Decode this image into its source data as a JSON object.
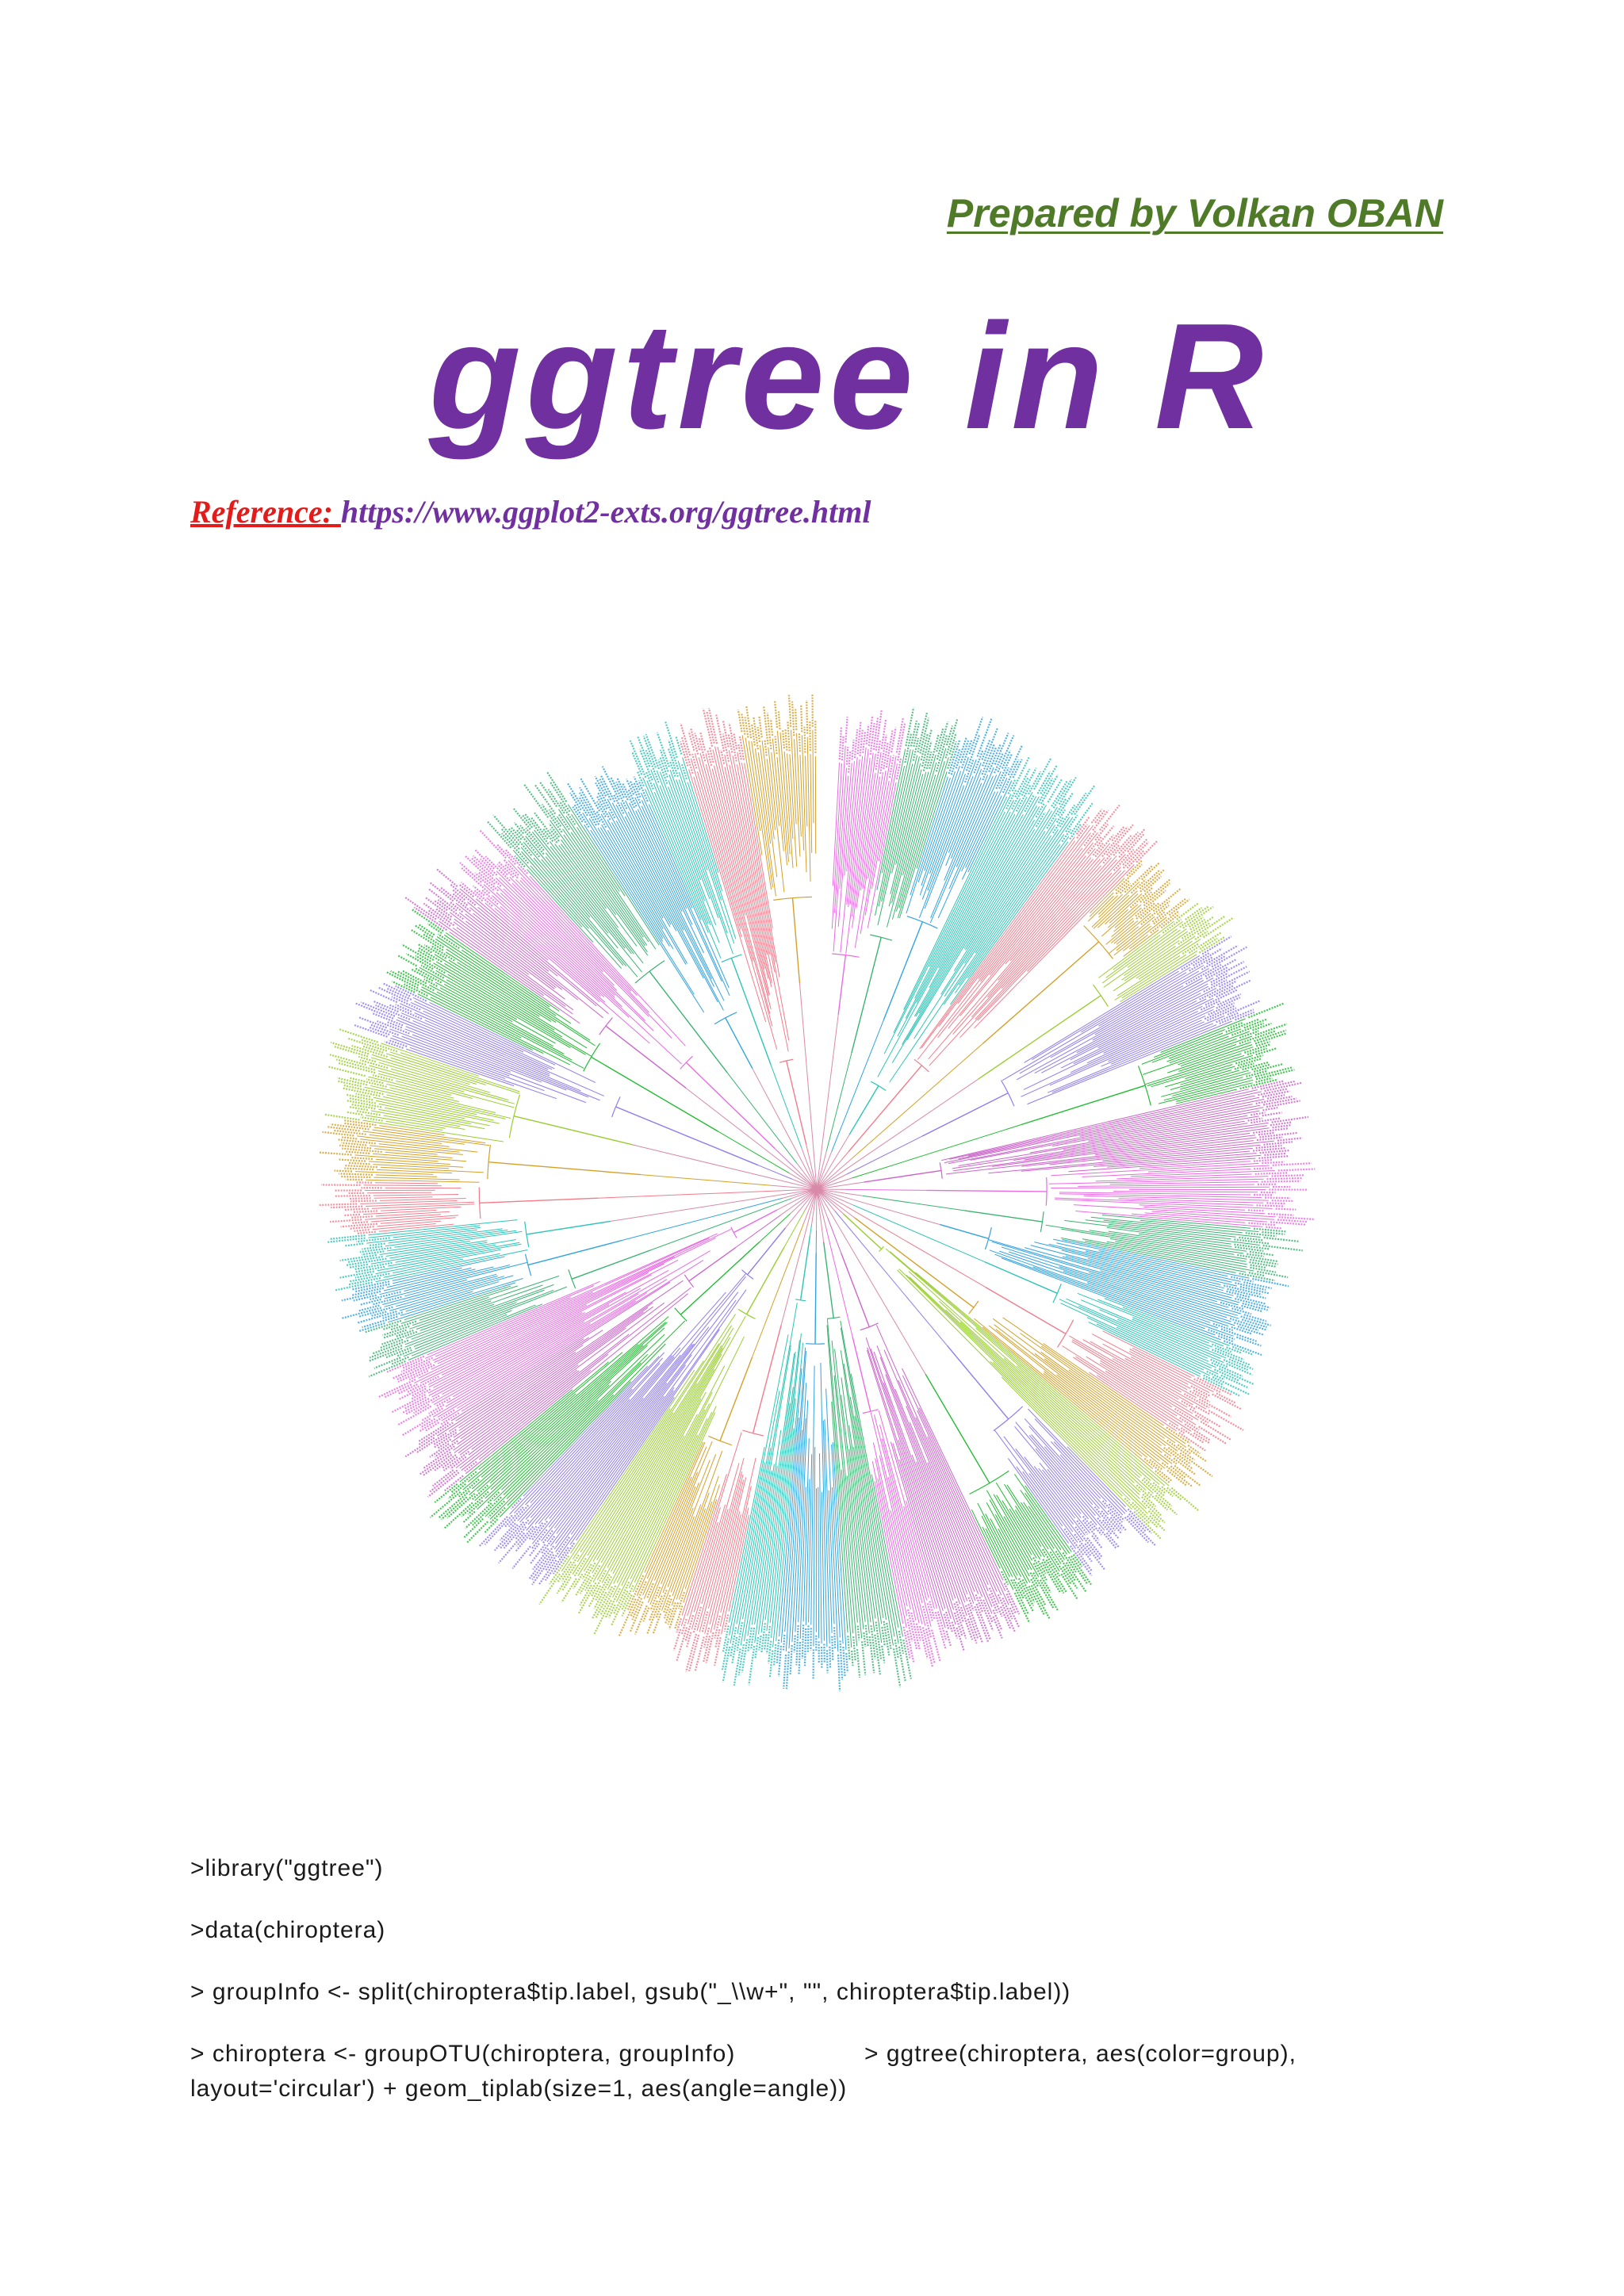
{
  "header": {
    "author": "Prepared by Volkan OBAN",
    "title": "ggtree in R",
    "reference_label": "Reference: ",
    "reference_url": "https://www.ggplot2-exts.org/ggtree.html"
  },
  "figure": {
    "palette": [
      "#e86be3",
      "#3cb371",
      "#33a3e0",
      "#2ec4b6",
      "#f07c8c",
      "#d4a02a",
      "#9acd32",
      "#8e7cf0",
      "#22bb33",
      "#cc66cc"
    ]
  },
  "code": {
    "line1": ">library(\"ggtree\")",
    "line2": ">data(chiroptera)",
    "line3": "> groupInfo <- split(chiroptera$tip.label, gsub(\"_\\\\w+\", \"\", chiroptera$tip.label))",
    "line4a": "> chiroptera <- groupOTU(chiroptera, groupInfo)",
    "line4b": "> ggtree(chiroptera, aes(color=group),",
    "line5": "layout='circular') + geom_tiplab(size=1, aes(angle=angle))"
  }
}
